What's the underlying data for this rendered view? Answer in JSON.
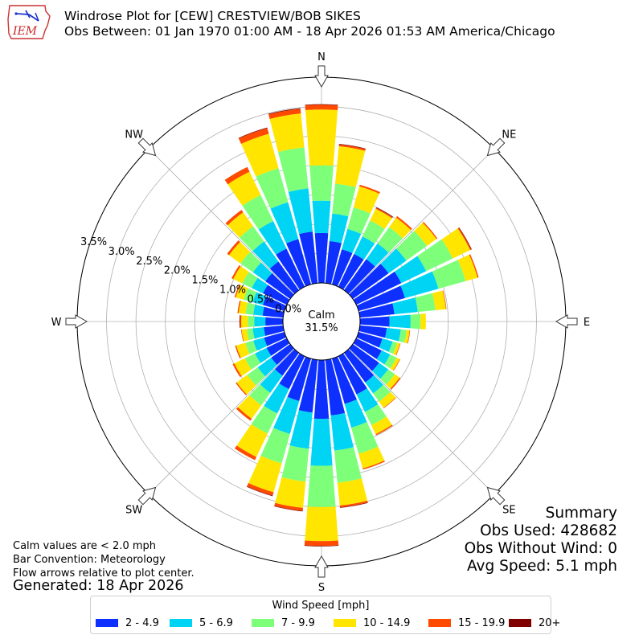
{
  "title_line1": "Windrose Plot for [CEW] CRESTVIEW/BOB SIKES",
  "title_line2": "Obs Between: 01 Jan 1970 01:00 AM - 18 Apr 2026 01:53 AM America/Chicago",
  "logo_text": "IEM",
  "calm": {
    "label": "Calm",
    "value": "31.5%"
  },
  "notes": [
    "Calm values are < 2.0 mph",
    "Bar Convention: Meteorology",
    "Flow arrows relative to plot center."
  ],
  "generated": "Generated: 18 Apr 2026",
  "summary": {
    "heading": "Summary",
    "obs_used": "Obs Used: 428682",
    "obs_without_wind": "Obs Without Wind: 0",
    "avg_speed": "Avg Speed: 5.1 mph"
  },
  "legend": {
    "title": "Wind Speed [mph]",
    "items": [
      {
        "label": "2 - 4.9",
        "color": "#0d30ff"
      },
      {
        "label": "5 - 6.9",
        "color": "#00d4f5"
      },
      {
        "label": "7 - 9.9",
        "color": "#7dff7a"
      },
      {
        "label": "10 - 14.9",
        "color": "#ffe500"
      },
      {
        "label": "15 - 19.9",
        "color": "#ff4a00"
      },
      {
        "label": "20+",
        "color": "#800000"
      }
    ]
  },
  "chart_data": {
    "type": "windrose",
    "title": "Windrose Plot for [CEW] CRESTVIEW/BOB SIKES",
    "direction_labels": [
      "N",
      "NE",
      "E",
      "SE",
      "S",
      "SW",
      "W",
      "NW"
    ],
    "radial_tick_labels": [
      "0.0%",
      "0.5%",
      "1.0%",
      "1.5%",
      "2.0%",
      "2.5%",
      "3.0%",
      "3.5%"
    ],
    "radial_range_percent": [
      0,
      3.5
    ],
    "grid": true,
    "legend_placement": "bottom",
    "speed_bins": [
      "2 - 4.9",
      "5 - 6.9",
      "7 - 9.9",
      "10 - 14.9",
      "15 - 19.9",
      "20+"
    ],
    "directions_deg": [
      0,
      10,
      20,
      30,
      40,
      50,
      60,
      70,
      80,
      90,
      100,
      110,
      120,
      130,
      140,
      150,
      160,
      170,
      180,
      190,
      200,
      210,
      220,
      230,
      240,
      250,
      260,
      270,
      280,
      290,
      300,
      310,
      320,
      330,
      340,
      350
    ],
    "cumulative_percent": [
      [
        0.85,
        1.4,
        2.0,
        2.95,
        3.03,
        3.04
      ],
      [
        0.72,
        1.19,
        1.7,
        2.34,
        2.37,
        2.38
      ],
      [
        0.62,
        0.98,
        1.36,
        1.73,
        1.76,
        1.76
      ],
      [
        0.62,
        0.95,
        1.25,
        1.47,
        1.49,
        1.5
      ],
      [
        0.65,
        0.98,
        1.32,
        1.52,
        1.55,
        1.55
      ],
      [
        0.75,
        1.12,
        1.55,
        1.75,
        1.77,
        1.77
      ],
      [
        0.85,
        1.32,
        1.82,
        2.15,
        2.17,
        2.18
      ],
      [
        0.82,
        1.41,
        1.89,
        2.1,
        2.12,
        2.12
      ],
      [
        0.59,
        0.99,
        1.29,
        1.47,
        1.48,
        1.48
      ],
      [
        0.5,
        0.86,
        1.03,
        1.12,
        1.12,
        1.12
      ],
      [
        0.46,
        0.7,
        0.8,
        0.85,
        0.86,
        0.86
      ],
      [
        0.42,
        0.6,
        0.68,
        0.73,
        0.74,
        0.74
      ],
      [
        0.48,
        0.64,
        0.76,
        0.82,
        0.83,
        0.83
      ],
      [
        0.55,
        0.74,
        0.88,
        0.98,
        1.0,
        1.0
      ],
      [
        0.62,
        0.85,
        1.02,
        1.15,
        1.16,
        1.16
      ],
      [
        0.72,
        1.05,
        1.3,
        1.47,
        1.49,
        1.49
      ],
      [
        0.8,
        1.22,
        1.68,
        1.94,
        1.96,
        1.96
      ],
      [
        0.95,
        1.55,
        2.1,
        2.49,
        2.52,
        2.53
      ],
      [
        1.0,
        1.8,
        2.5,
        3.08,
        3.16,
        3.17
      ],
      [
        0.9,
        1.52,
        2.08,
        2.53,
        2.58,
        2.59
      ],
      [
        0.75,
        1.33,
        1.85,
        2.36,
        2.42,
        2.43
      ],
      [
        0.62,
        1.08,
        1.46,
        1.9,
        1.96,
        1.96
      ],
      [
        0.48,
        0.84,
        1.1,
        1.38,
        1.42,
        1.42
      ],
      [
        0.4,
        0.68,
        0.9,
        1.12,
        1.14,
        1.14
      ],
      [
        0.38,
        0.6,
        0.79,
        0.99,
        1.02,
        1.02
      ],
      [
        0.36,
        0.55,
        0.69,
        0.85,
        0.87,
        0.87
      ],
      [
        0.33,
        0.52,
        0.62,
        0.71,
        0.72,
        0.72
      ],
      [
        0.3,
        0.49,
        0.6,
        0.71,
        0.73,
        0.74
      ],
      [
        0.35,
        0.51,
        0.64,
        0.76,
        0.78,
        0.78
      ],
      [
        0.38,
        0.56,
        0.72,
        0.86,
        0.88,
        0.88
      ],
      [
        0.45,
        0.66,
        0.84,
        1.01,
        1.04,
        1.04
      ],
      [
        0.52,
        0.78,
        1.04,
        1.28,
        1.32,
        1.32
      ],
      [
        0.6,
        1.02,
        1.34,
        1.63,
        1.68,
        1.68
      ],
      [
        0.72,
        1.24,
        1.73,
        2.17,
        2.26,
        2.26
      ],
      [
        0.8,
        1.45,
        2.05,
        2.66,
        2.76,
        2.77
      ],
      [
        0.88,
        1.62,
        2.32,
        2.9,
        2.98,
        2.99
      ]
    ]
  }
}
